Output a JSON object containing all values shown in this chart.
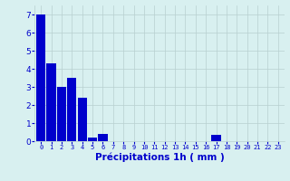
{
  "values": [
    7.0,
    4.3,
    3.0,
    3.5,
    2.4,
    0.2,
    0.4,
    0.0,
    0.0,
    0.0,
    0.0,
    0.0,
    0.0,
    0.0,
    0.0,
    0.0,
    0.0,
    0.35,
    0.0,
    0.0,
    0.0,
    0.0,
    0.0,
    0.0
  ],
  "categories": [
    0,
    1,
    2,
    3,
    4,
    5,
    6,
    7,
    8,
    9,
    10,
    11,
    12,
    13,
    14,
    15,
    16,
    17,
    18,
    19,
    20,
    21,
    22,
    23
  ],
  "bar_color": "#0000cc",
  "background_color": "#d8f0f0",
  "grid_color": "#b8d0d0",
  "xlabel": "Précipitations 1h ( mm )",
  "xlabel_color": "#0000cc",
  "tick_color": "#0000cc",
  "ylim": [
    0,
    7.5
  ],
  "yticks": [
    0,
    1,
    2,
    3,
    4,
    5,
    6,
    7
  ],
  "bar_width": 0.9,
  "tick_fontsize": 5.0,
  "ylabel_fontsize": 6.5,
  "xlabel_fontsize": 7.5
}
